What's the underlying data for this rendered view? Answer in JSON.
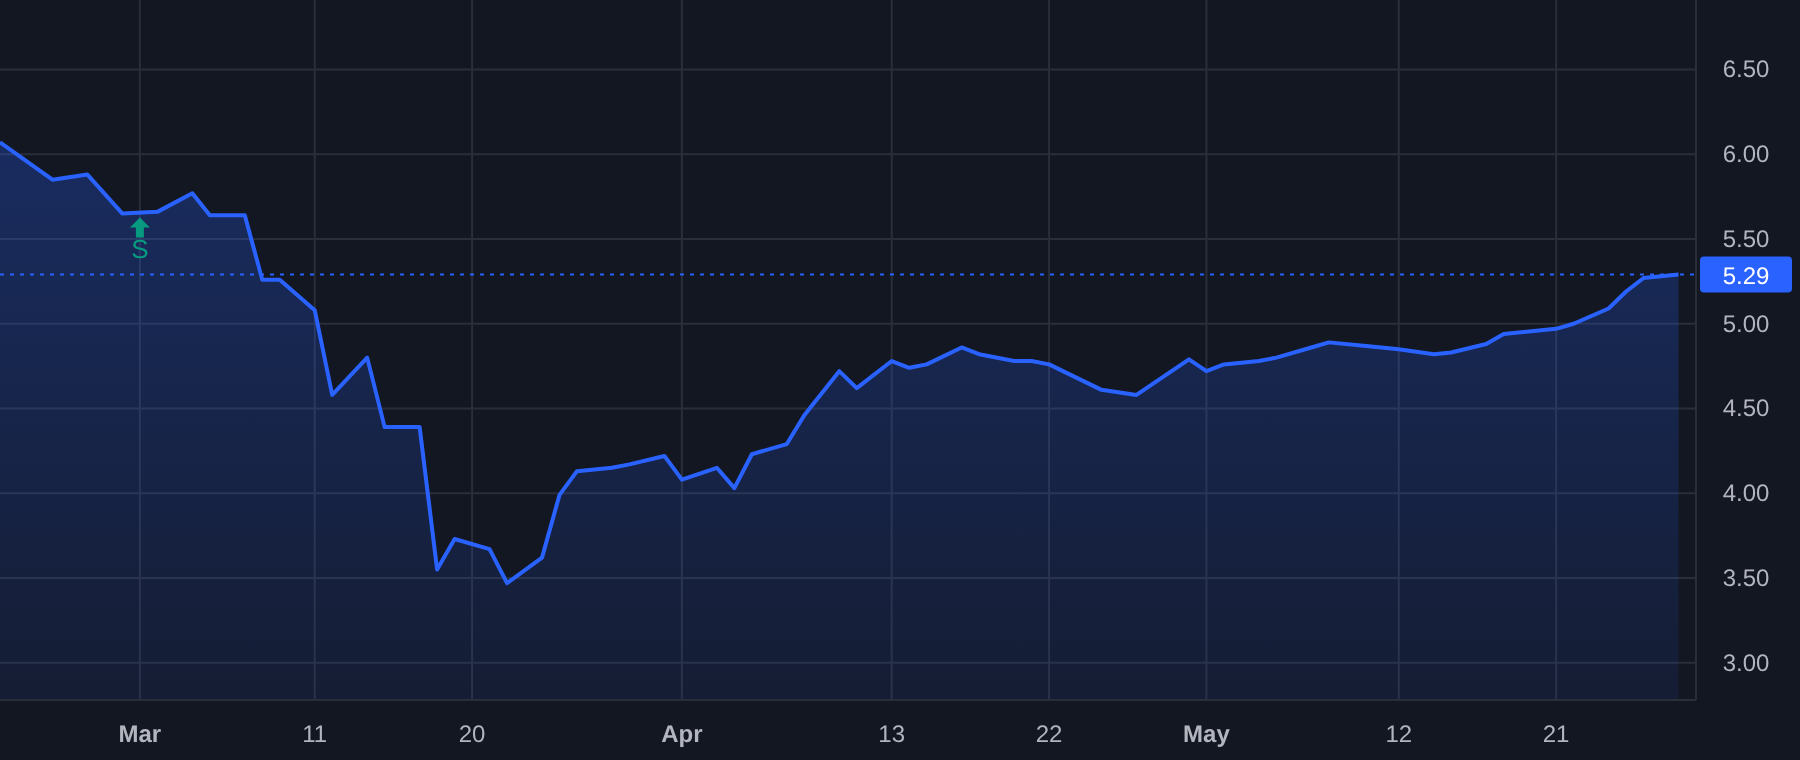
{
  "chart_data": {
    "type": "area",
    "x": [
      "--02-21",
      "--02-24",
      "--02-26",
      "--02-28",
      "--03-02",
      "--03-04",
      "--03-05",
      "--03-07",
      "--03-08",
      "--03-09",
      "--03-11",
      "--03-12",
      "--03-14",
      "--03-15",
      "--03-17",
      "--03-18",
      "--03-19",
      "--03-21",
      "--03-22",
      "--03-24",
      "--03-25",
      "--03-26",
      "--03-28",
      "--03-29",
      "--03-31",
      "--04-01",
      "--04-03",
      "--04-04",
      "--04-05",
      "--04-07",
      "--04-08",
      "--04-10",
      "--04-11",
      "--04-13",
      "--04-14",
      "--04-15",
      "--04-17",
      "--04-18",
      "--04-20",
      "--04-21",
      "--04-22",
      "--04-24",
      "--04-25",
      "--04-27",
      "--04-30",
      "--05-01",
      "--05-02",
      "--05-04",
      "--05-05",
      "--05-07",
      "--05-08",
      "--05-10",
      "--05-11",
      "--05-12",
      "--05-14",
      "--05-15",
      "--05-17",
      "--05-18",
      "--05-20",
      "--05-21",
      "--05-22",
      "--05-24",
      "--05-25",
      "--05-26",
      "--05-28"
    ],
    "series": [
      {
        "color": "#2962ff",
        "values": [
          6.07,
          5.85,
          5.88,
          5.65,
          5.66,
          5.77,
          5.64,
          5.64,
          5.26,
          5.26,
          5.08,
          4.58,
          4.8,
          4.39,
          4.39,
          3.55,
          3.73,
          3.67,
          3.47,
          3.62,
          3.99,
          4.13,
          4.15,
          4.17,
          4.22,
          4.08,
          4.15,
          4.03,
          4.23,
          4.29,
          4.46,
          4.72,
          4.62,
          4.78,
          4.74,
          4.76,
          4.86,
          4.82,
          4.78,
          4.78,
          4.76,
          4.66,
          4.61,
          4.58,
          4.79,
          4.72,
          4.76,
          4.78,
          4.8,
          4.86,
          4.89,
          4.87,
          4.86,
          4.85,
          4.82,
          4.83,
          4.88,
          4.94,
          4.96,
          4.97,
          5.0,
          5.09,
          5.19,
          5.27,
          5.29
        ]
      }
    ],
    "xlim": [
      "--02-21",
      "--05-29"
    ],
    "xticks": [
      {
        "value": "--03-01",
        "label": "Mar"
      },
      {
        "value": "--03-11",
        "label": "11"
      },
      {
        "value": "--03-20",
        "label": "20"
      },
      {
        "value": "--04-01",
        "label": "Apr"
      },
      {
        "value": "--04-13",
        "label": "13"
      },
      {
        "value": "--04-22",
        "label": "22"
      },
      {
        "value": "--05-01",
        "label": "May"
      },
      {
        "value": "--05-12",
        "label": "12"
      },
      {
        "value": "--05-21",
        "label": "21"
      }
    ],
    "ylim": [
      2.78,
      6.91
    ],
    "yticks": [
      {
        "value": 3,
        "label": "3.00"
      },
      {
        "value": 3.5,
        "label": "3.50"
      },
      {
        "value": 4,
        "label": "4.00"
      },
      {
        "value": 4.5,
        "label": "4.50"
      },
      {
        "value": 5,
        "label": "5.00"
      },
      {
        "value": 5.5,
        "label": "5.50"
      },
      {
        "value": 6,
        "label": "6.00"
      },
      {
        "value": 6.5,
        "label": "6.50"
      }
    ],
    "grid": true,
    "ref_lines": [
      {
        "axis": "y",
        "value": 5.29,
        "label": "5.29",
        "color": "#2962ff",
        "line_style": "dotted"
      }
    ],
    "annotations": [
      {
        "text": "S",
        "x": "--03-01",
        "y": 5.65
      }
    ]
  }
}
